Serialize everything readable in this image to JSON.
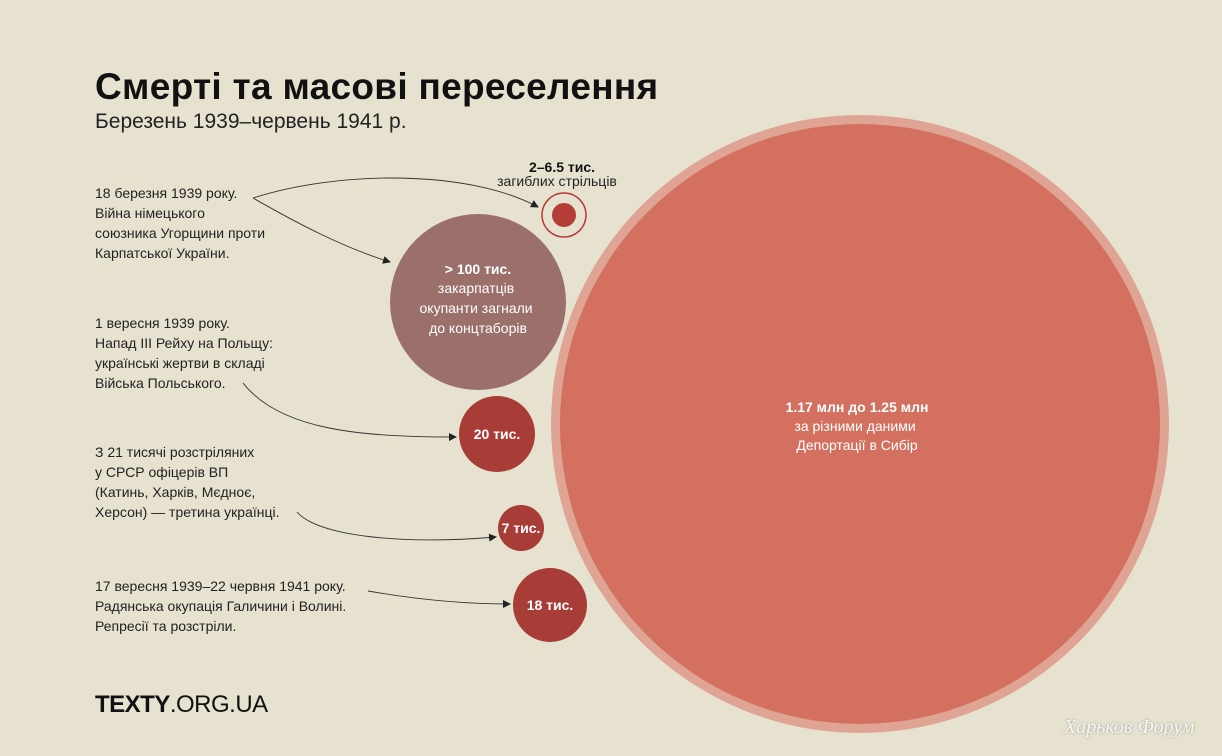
{
  "header": {
    "title": "Смерті та масові переселення",
    "subtitle": "Березень 1939–червень 1941 р."
  },
  "notes": [
    "18 березня 1939 року.\nВійна німецького\nсоюзника Угорщини проти\nКарпатської України.",
    "1 вересня 1939 року.\nНапад III Рейху на Польщу:\nукраїнські жертви в складі\nВійська Польського.",
    "З 21 тисячі розстріляних\nу СРСР офіцерів ВП\n(Катинь, Харків, Мєдноє,\nХерсон) — третина українці.",
    "17 вересня 1939–22 червня 1941 року.\nРадянська окупація Галичини і Волині.\nРепресії та розстріли."
  ],
  "colors": {
    "background": "#e6e2cf",
    "deportation": "#d3705f",
    "deportation_ring": "#e0a494",
    "camps": "#9b6f6a",
    "victims": "#a83c36",
    "riflemen": "#b53d38"
  },
  "chart_data": {
    "type": "bubble",
    "bubbles": [
      {
        "id": "riflemen",
        "value_text": "2–6.5 тис.",
        "label": "загиблих стрільців",
        "value_min": 2000,
        "value_max": 6500
      },
      {
        "id": "camps",
        "value_text": "> 100 тис.",
        "label": "закарпатців\nокупанти загнали\nдо концтаборів",
        "value_min": 100000
      },
      {
        "id": "polish_army",
        "value_text": "20 тис.",
        "label": "",
        "value": 20000
      },
      {
        "id": "officers",
        "value_text": "7 тис.",
        "label": "",
        "value": 7000
      },
      {
        "id": "repressions",
        "value_text": "18 тис.",
        "label": "",
        "value": 18000
      },
      {
        "id": "deportation",
        "value_text": "1.17 млн до 1.25 млн",
        "label": "за різними даними\nДепортації в Сибір",
        "value_min": 1170000,
        "value_max": 1250000
      }
    ]
  },
  "footer": {
    "brand_bold": "TEXTY",
    "brand_light": ".ORG.UA",
    "watermark": "Харьков Форум"
  }
}
